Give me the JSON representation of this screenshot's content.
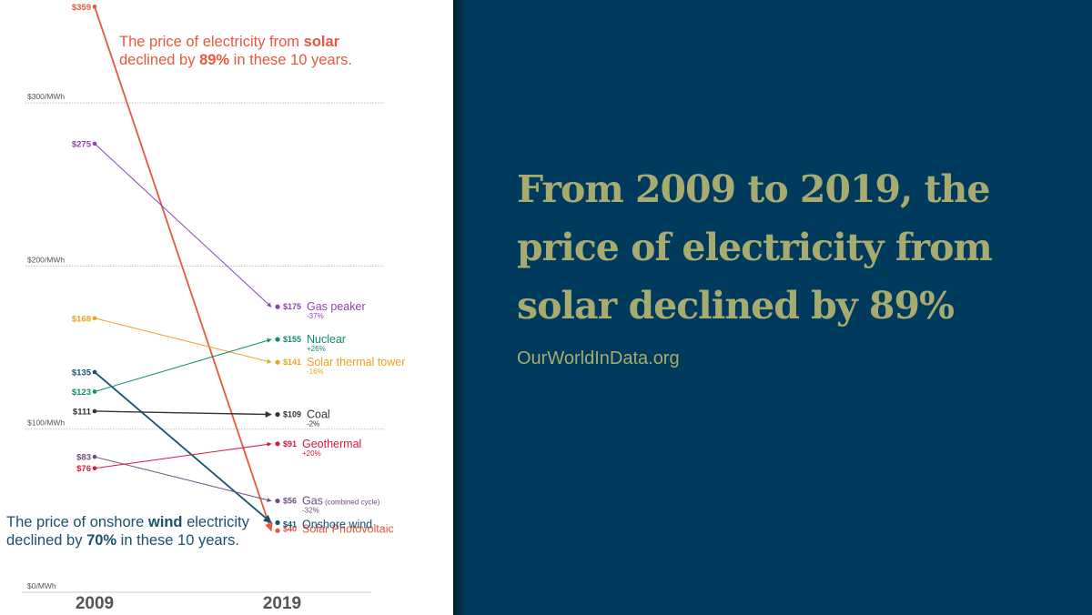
{
  "chart_data": {
    "type": "line",
    "subtype": "slope",
    "title": "",
    "unit_suffix": "/MWh",
    "x": [
      "2009",
      "2019"
    ],
    "ylim": [
      0,
      359
    ],
    "yticks": [
      {
        "value": 0,
        "label": "$0/MWh"
      },
      {
        "value": 100,
        "label": "$100/MWh"
      },
      {
        "value": 200,
        "label": "$200/MWh"
      },
      {
        "value": 300,
        "label": "$300/MWh"
      }
    ],
    "grid": true,
    "series": [
      {
        "name": "Solar Photovoltaic",
        "start": 359,
        "end": 40,
        "start_label": "$359",
        "end_label": "$40",
        "change": "",
        "color": "#e8573e"
      },
      {
        "name": "Gas peaker",
        "start": 275,
        "end": 175,
        "start_label": "$275",
        "end_label": "$175",
        "change": "-37%",
        "color": "#8e44ad"
      },
      {
        "name": "Solar thermal tower",
        "start": 168,
        "end": 141,
        "start_label": "$168",
        "end_label": "$141",
        "change": "-16%",
        "color": "#f0a01a"
      },
      {
        "name": "Onshore wind",
        "start": 135,
        "end": 41,
        "start_label": "$135",
        "end_label": "$41",
        "change": "",
        "color": "#18516f"
      },
      {
        "name": "Nuclear",
        "start": 123,
        "end": 155,
        "start_label": "$123",
        "end_label": "$155",
        "change": "+26%",
        "color": "#138a72"
      },
      {
        "name": "Coal",
        "start": 111,
        "end": 109,
        "start_label": "$111",
        "end_label": "$109",
        "change": "-2%",
        "color": "#333333"
      },
      {
        "name": "Gas",
        "name_suffix": "(combined cycle)",
        "start": 83,
        "end": 56,
        "start_label": "$83",
        "end_label": "$56",
        "change": "-32%",
        "color": "#6d4c7d"
      },
      {
        "name": "Geothermal",
        "start": 76,
        "end": 91,
        "start_label": "$76",
        "end_label": "$91",
        "change": "+20%",
        "color": "#d9173b"
      }
    ],
    "annotations": [
      {
        "id": "solar",
        "text_before": "The price of electricity from ",
        "bold1": "solar",
        "line2_before": "declined by ",
        "bold2": "89%",
        "line2_after": " in these 10 years."
      },
      {
        "id": "wind",
        "text_before": "The price of onshore ",
        "bold1": "wind",
        "text_after": " electricity",
        "line2_before": "declined by ",
        "bold2": "70%",
        "line2_after": " in these 10 years."
      }
    ]
  },
  "headline": "From 2009 to 2019, the price of electricity from solar declined by 89%",
  "site": "OurWorldInData.org"
}
